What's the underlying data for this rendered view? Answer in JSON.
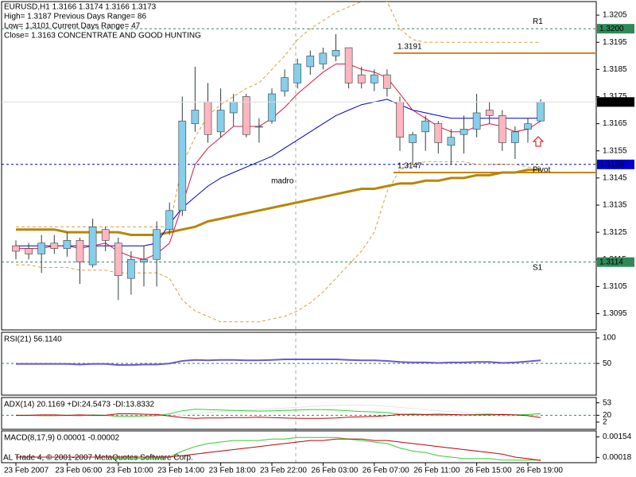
{
  "chart_data": [
    {
      "type": "candlestick",
      "header": [
        "EURUSD,H1  1.3166 1.3174 1.3166 1.3173",
        "High= 1.3187    Previous Days Range= 86",
        "Low= 1.3101    Current Days Range= 47",
        "Close= 1.3163    CONCENTRATE AND GOOD HUNTING"
      ],
      "categories": [
        "23 Feb 2007",
        null,
        null,
        null,
        "23 Feb 06:00",
        null,
        null,
        null,
        "23 Feb 10:00",
        null,
        null,
        null,
        "23 Feb 14:00",
        null,
        null,
        null,
        "23 Feb 18:00",
        null,
        null,
        null,
        "23 Feb 22:00",
        null,
        null,
        null,
        "26 Feb 03:00",
        null,
        null,
        null,
        "26 Feb 07:00",
        null,
        null,
        null,
        "26 Feb 11:00",
        null,
        null,
        null,
        "26 Feb 15:00",
        null,
        null,
        null,
        "26 Feb 19:00",
        null
      ],
      "open": [
        1.312,
        1.3119,
        1.3117,
        1.3121,
        1.3119,
        1.3122,
        1.3113,
        1.3126,
        1.3121,
        1.3108,
        1.3114,
        1.3115,
        1.3126,
        1.3133,
        1.3165,
        1.3173,
        1.3162,
        1.3169,
        1.3175,
        1.3164,
        1.3166,
        1.3177,
        1.318,
        1.3186,
        1.3187,
        1.319,
        1.3193,
        1.3183,
        1.318,
        1.3183,
        1.3173,
        1.3158,
        1.3162,
        1.3165,
        1.3157,
        1.3161,
        1.3163,
        1.317,
        1.3168,
        1.3158,
        1.3163,
        1.3166
      ],
      "high": [
        1.3122,
        1.3121,
        1.3124,
        1.3124,
        1.3125,
        1.3123,
        1.313,
        1.3127,
        1.3123,
        1.3118,
        1.312,
        1.3129,
        1.3136,
        1.3175,
        1.3186,
        1.318,
        1.3178,
        1.3176,
        1.3176,
        1.3167,
        1.3178,
        1.3185,
        1.3189,
        1.3192,
        1.3193,
        1.3198,
        1.3193,
        1.3186,
        1.3185,
        1.3185,
        1.3175,
        1.3162,
        1.3168,
        1.3166,
        1.3163,
        1.3168,
        1.3176,
        1.3173,
        1.317,
        1.3164,
        1.3167,
        1.3174
      ],
      "low": [
        1.3115,
        1.3115,
        1.311,
        1.3117,
        1.3116,
        1.3106,
        1.3112,
        1.3118,
        1.31,
        1.3102,
        1.3105,
        1.3105,
        1.3124,
        1.3131,
        1.3162,
        1.3158,
        1.316,
        1.3164,
        1.316,
        1.3158,
        1.3165,
        1.3175,
        1.3178,
        1.3183,
        1.3185,
        1.3188,
        1.3178,
        1.3178,
        1.3177,
        1.3175,
        1.3155,
        1.315,
        1.3155,
        1.3154,
        1.315,
        1.3154,
        1.316,
        1.3165,
        1.3155,
        1.3152,
        1.3158,
        1.3166
      ],
      "close": [
        1.3118,
        1.3117,
        1.3121,
        1.3119,
        1.3122,
        1.3114,
        1.3127,
        1.3122,
        1.3109,
        1.3115,
        1.3115,
        1.3126,
        1.3133,
        1.3166,
        1.317,
        1.3161,
        1.317,
        1.3173,
        1.3161,
        1.3164,
        1.3176,
        1.3182,
        1.3187,
        1.319,
        1.3191,
        1.3192,
        1.318,
        1.318,
        1.3183,
        1.3178,
        1.316,
        1.3161,
        1.3166,
        1.3158,
        1.316,
        1.3163,
        1.3169,
        1.3168,
        1.3158,
        1.3162,
        1.3165,
        1.3173
      ],
      "up_color": "#87ceeb",
      "down_color": "#ffb6c1",
      "wick_color": "#2f3f3f",
      "series": [
        {
          "color": "#d8a040",
          "dash": true,
          "width": 1,
          "values": [
            1.3127,
            1.3127,
            1.3127,
            1.3127,
            1.3127,
            1.3127,
            1.3127,
            1.3127,
            1.3127,
            1.3127,
            1.3127,
            1.3127,
            1.3127,
            1.315,
            1.316,
            1.3168,
            1.3172,
            1.3175,
            1.3178,
            1.318,
            1.3185,
            1.319,
            1.3196,
            1.32,
            1.3203,
            1.3206,
            1.3208,
            1.321,
            1.3211,
            1.321,
            1.32,
            1.3196,
            1.3195,
            1.3195,
            1.3195,
            1.3195,
            1.3195,
            1.3195,
            1.3195,
            1.3195,
            1.3195,
            1.3195
          ]
        },
        {
          "color": "#d8a040",
          "dash": true,
          "width": 1,
          "values": [
            1.3113,
            1.3113,
            1.3112,
            1.3112,
            1.3112,
            1.3111,
            1.3111,
            1.3111,
            1.311,
            1.311,
            1.311,
            1.311,
            1.3108,
            1.31,
            1.3096,
            1.3094,
            1.3092,
            1.3092,
            1.3092,
            1.3092,
            1.3093,
            1.3094,
            1.3096,
            1.3099,
            1.3103,
            1.3108,
            1.3113,
            1.3118,
            1.3125,
            1.314,
            1.3148,
            1.315,
            1.3151,
            1.3151,
            1.3151,
            1.3151,
            1.315,
            1.315,
            1.315,
            1.315,
            1.3149,
            1.3149
          ]
        },
        {
          "name": "madro",
          "color": "#b8860b",
          "width": 3,
          "values": [
            1.3126,
            1.3126,
            1.3126,
            1.3126,
            1.3125,
            1.3125,
            1.3125,
            1.3125,
            1.3125,
            1.3124,
            1.3124,
            1.3124,
            1.3125,
            1.3126,
            1.3127,
            1.3129,
            1.313,
            1.3131,
            1.3132,
            1.3133,
            1.3134,
            1.3135,
            1.3136,
            1.3137,
            1.3138,
            1.3139,
            1.314,
            1.3141,
            1.3141,
            1.3142,
            1.3143,
            1.3143,
            1.3144,
            1.3144,
            1.3145,
            1.3145,
            1.3146,
            1.3146,
            1.3147,
            1.3147,
            1.3148,
            1.3148
          ]
        },
        {
          "color": "#0000cd",
          "width": 1,
          "values": [
            1.312,
            1.312,
            1.312,
            1.312,
            1.312,
            1.312,
            1.312,
            1.312,
            1.312,
            1.312,
            1.312,
            1.3121,
            1.3128,
            1.3134,
            1.3138,
            1.3142,
            1.3145,
            1.3147,
            1.3149,
            1.3151,
            1.3153,
            1.3156,
            1.3159,
            1.3162,
            1.3165,
            1.3168,
            1.317,
            1.3172,
            1.3173,
            1.3174,
            1.3172,
            1.317,
            1.3169,
            1.3168,
            1.3167,
            1.3167,
            1.3167,
            1.3167,
            1.3167,
            1.3167,
            1.3167,
            1.3167
          ]
        },
        {
          "color": "#dc143c",
          "width": 1,
          "values": [
            1.3119,
            1.3119,
            1.3119,
            1.312,
            1.312,
            1.3119,
            1.312,
            1.3121,
            1.3118,
            1.3116,
            1.3115,
            1.3117,
            1.3121,
            1.3135,
            1.315,
            1.3156,
            1.316,
            1.3164,
            1.3164,
            1.3164,
            1.3167,
            1.3171,
            1.3176,
            1.318,
            1.3184,
            1.3187,
            1.3187,
            1.3185,
            1.3184,
            1.3182,
            1.3176,
            1.317,
            1.3167,
            1.3164,
            1.3162,
            1.3162,
            1.3164,
            1.3165,
            1.3164,
            1.3162,
            1.3163,
            1.3166
          ]
        }
      ],
      "levels": [
        {
          "label": "R1",
          "value": 1.32,
          "value_label": "1.3200",
          "color": "#2e8b57"
        },
        {
          "label": "Pivot",
          "value": 1.315,
          "value_label": "1.3150",
          "color": "#0000cd"
        },
        {
          "label": "S1",
          "value": 1.3114,
          "value_label": "1.3114",
          "color": "#2e8b57"
        }
      ],
      "marks": [
        {
          "value": 1.3191,
          "label": "1.3191",
          "color": "#c8841a"
        },
        {
          "value": 1.3147,
          "label": "1.3147",
          "color": "#c8841a"
        }
      ],
      "last_price": {
        "value": 1.3173,
        "label": "1.3173"
      },
      "ylim": [
        1.3089,
        1.321
      ],
      "yticks": [
        1.3205,
        1.3195,
        1.3185,
        1.3175,
        1.3165,
        1.3155,
        1.3145,
        1.3135,
        1.3125,
        1.3115,
        1.3105,
        1.3095
      ]
    },
    {
      "type": "line",
      "title": "RSI(21) 56.1140",
      "series": [
        {
          "color": "#6a5acd",
          "width": 2,
          "values": [
            49,
            49,
            49,
            49,
            49,
            48,
            49,
            49,
            47,
            47,
            48,
            48,
            50,
            55,
            57,
            56,
            57,
            57,
            56,
            56,
            57,
            58,
            58,
            58,
            58,
            58,
            57,
            56,
            56,
            55,
            53,
            52,
            52,
            51,
            52,
            52,
            53,
            53,
            51,
            52,
            54,
            56.114
          ]
        }
      ],
      "levels": [
        {
          "value": 50,
          "color": "#2e8b57"
        }
      ],
      "ylim": [
        -12,
        111
      ],
      "yticks": [
        100,
        50
      ]
    },
    {
      "type": "line",
      "title": "ADX(14) 20.1169 +DI:24.5473 -DI:13.8332",
      "series": [
        {
          "color": "#e4e4e4",
          "width": 1,
          "values": [
            18,
            18,
            18,
            18,
            18,
            18,
            18,
            18,
            18,
            18,
            18,
            18,
            18,
            20,
            24,
            27,
            30,
            32,
            34,
            35,
            37,
            39,
            41,
            43,
            45,
            46,
            47,
            47,
            46,
            44,
            41,
            38,
            35,
            32,
            30,
            28,
            26,
            24,
            23,
            22,
            21,
            20.1169
          ]
        },
        {
          "color": "#32cd32",
          "width": 1,
          "values": [
            20,
            20,
            19,
            19,
            20,
            19,
            21,
            20,
            17,
            17,
            18,
            19,
            24,
            32,
            36,
            35,
            34,
            33,
            32,
            31,
            32,
            33,
            34,
            35,
            35,
            34,
            32,
            30,
            29,
            27,
            23,
            21,
            21,
            20,
            21,
            21,
            22,
            23,
            21,
            21,
            22,
            24.5473
          ]
        },
        {
          "color": "#c00000",
          "width": 1,
          "values": [
            20,
            20,
            21,
            21,
            20,
            21,
            20,
            20,
            24,
            24,
            23,
            22,
            18,
            14,
            12,
            13,
            13,
            14,
            14,
            15,
            14,
            13,
            12,
            12,
            12,
            13,
            15,
            16,
            17,
            19,
            22,
            23,
            22,
            23,
            22,
            21,
            21,
            21,
            22,
            21,
            19,
            13.8332
          ]
        }
      ],
      "levels": [
        {
          "value": 20,
          "color": "#2e8b57"
        }
      ],
      "ylim": [
        -17,
        67
      ],
      "yticks": [
        53,
        20,
        2
      ]
    },
    {
      "type": "line",
      "title": "MACD(8,17,9) 0.00001 -0.00002",
      "series": [
        {
          "color": "#32cd32",
          "width": 1,
          "values": [
            0.0002,
            0.0002,
            0.0002,
            0.0002,
            0.0002,
            0.0002,
            0.0002,
            0.0002,
            0.0001,
            0.0001,
            0.0001,
            0.0001,
            0.0002,
            0.0006,
            0.0009,
            0.0011,
            0.0012,
            0.0013,
            0.0013,
            0.0013,
            0.0014,
            0.0014,
            0.0015,
            0.0015,
            0.0015,
            0.0015,
            0.0014,
            0.0013,
            0.0012,
            0.0011,
            0.0008,
            0.0006,
            0.0005,
            0.0003,
            0.0002,
            0.0001,
            0.0001,
            0.0001,
            0.0,
            0.0,
            0.0,
            1e-05
          ]
        },
        {
          "color": "#c00000",
          "width": 1,
          "values": [
            0.0002,
            0.0002,
            0.0002,
            0.0002,
            0.0002,
            0.0002,
            0.0002,
            0.0002,
            0.0002,
            0.0002,
            0.0002,
            0.0002,
            0.0002,
            0.0003,
            0.0004,
            0.0005,
            0.0006,
            0.0007,
            0.0008,
            0.0009,
            0.001,
            0.0011,
            0.0012,
            0.0013,
            0.0013,
            0.0014,
            0.0014,
            0.0014,
            0.0013,
            0.0013,
            0.0012,
            0.0011,
            0.001,
            0.0009,
            0.0008,
            0.0007,
            0.0006,
            0.0005,
            0.0004,
            0.0002,
            0.0001,
            -2e-05
          ]
        }
      ],
      "ylim": [
        -0.00017,
        0.00194
      ],
      "yticks": [
        0.00154,
        0.00018
      ]
    }
  ],
  "footer": "AL Trade 4, © 2001-2007 MetaQuotes Software Corp."
}
